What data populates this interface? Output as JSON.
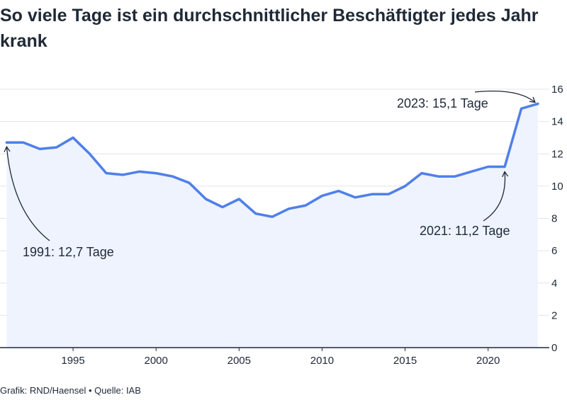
{
  "chart_data": {
    "type": "area",
    "title": "So viele Tage ist ein durchschnittlicher Beschäftigter jedes Jahr krank",
    "xlabel": "",
    "ylabel": "",
    "x": [
      1991,
      1992,
      1993,
      1994,
      1995,
      1996,
      1997,
      1998,
      1999,
      2000,
      2001,
      2002,
      2003,
      2004,
      2005,
      2006,
      2007,
      2008,
      2009,
      2010,
      2011,
      2012,
      2013,
      2014,
      2015,
      2016,
      2017,
      2018,
      2019,
      2020,
      2021,
      2022,
      2023
    ],
    "series": [
      {
        "values": [
          12.7,
          12.7,
          12.3,
          12.4,
          13.0,
          12.0,
          10.8,
          10.7,
          10.9,
          10.8,
          10.6,
          10.2,
          9.2,
          8.7,
          9.2,
          8.3,
          8.1,
          8.6,
          8.8,
          9.4,
          9.7,
          9.3,
          9.5,
          9.5,
          10.0,
          10.8,
          10.6,
          10.6,
          10.9,
          11.2,
          11.2,
          14.8,
          15.1
        ]
      }
    ],
    "xlim": [
      1990.6,
      2023.3
    ],
    "ylim": [
      0,
      16
    ],
    "x_ticks": [
      "1995",
      "2000",
      "2005",
      "2010",
      "2015",
      "2020"
    ],
    "y_ticks": [
      "0",
      "2",
      "4",
      "6",
      "8",
      "10",
      "12",
      "14",
      "16"
    ],
    "y_axis_side": "right",
    "grid": true,
    "annotations": [
      {
        "text": "1991: 12,7 Tage",
        "x": 1991,
        "y": 12.7
      },
      {
        "text": "2021: 11,2 Tage",
        "x": 2021,
        "y": 11.2
      },
      {
        "text": "2023: 15,1 Tage",
        "x": 2023,
        "y": 15.1
      }
    ],
    "colors": {
      "line": "#4f7fea",
      "fill": "#eef3fd",
      "grid": "#e1e4ea",
      "axis": "#1f2937"
    }
  },
  "footer": "Grafik: RND/Haensel • Quelle: IAB"
}
